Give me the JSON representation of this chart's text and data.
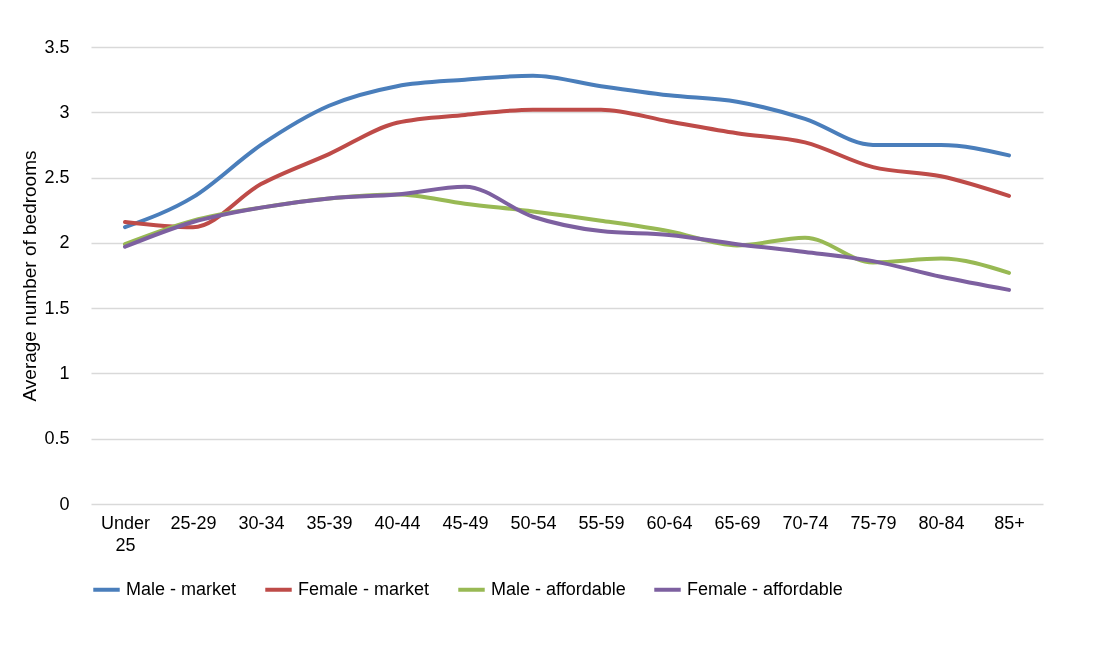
{
  "chart_data": {
    "type": "line",
    "ylabel": "Average number of bedrooms",
    "categories": [
      "Under 25",
      "25-29",
      "30-34",
      "35-39",
      "40-44",
      "45-49",
      "50-54",
      "55-59",
      "60-64",
      "65-69",
      "70-74",
      "75-79",
      "80-84",
      "85+"
    ],
    "series": [
      {
        "name": "Male - market",
        "color": "#4a7ebb",
        "values": [
          2.12,
          2.35,
          2.75,
          3.05,
          3.2,
          3.25,
          3.28,
          3.2,
          3.13,
          3.08,
          2.95,
          2.75,
          2.75,
          2.67
        ]
      },
      {
        "name": "Female - market",
        "color": "#be4b48",
        "values": [
          2.16,
          2.12,
          2.45,
          2.68,
          2.92,
          2.98,
          3.02,
          3.02,
          2.93,
          2.84,
          2.77,
          2.58,
          2.51,
          2.36
        ]
      },
      {
        "name": "Male - affordable",
        "color": "#98b954",
        "values": [
          1.99,
          2.17,
          2.27,
          2.34,
          2.37,
          2.3,
          2.24,
          2.17,
          2.09,
          1.98,
          2.04,
          1.85,
          1.88,
          1.77
        ]
      },
      {
        "name": "Female - affordable",
        "color": "#7d60a0",
        "values": [
          1.97,
          2.16,
          2.27,
          2.34,
          2.37,
          2.43,
          2.2,
          2.09,
          2.06,
          1.99,
          1.93,
          1.86,
          1.74,
          1.64
        ]
      }
    ],
    "ylim": [
      0,
      3.5
    ],
    "yticks": [
      0,
      0.5,
      1,
      1.5,
      2,
      2.5,
      3,
      3.5
    ],
    "grid": "y",
    "legend": "bottom",
    "marker": "none",
    "line_style": "solid"
  }
}
